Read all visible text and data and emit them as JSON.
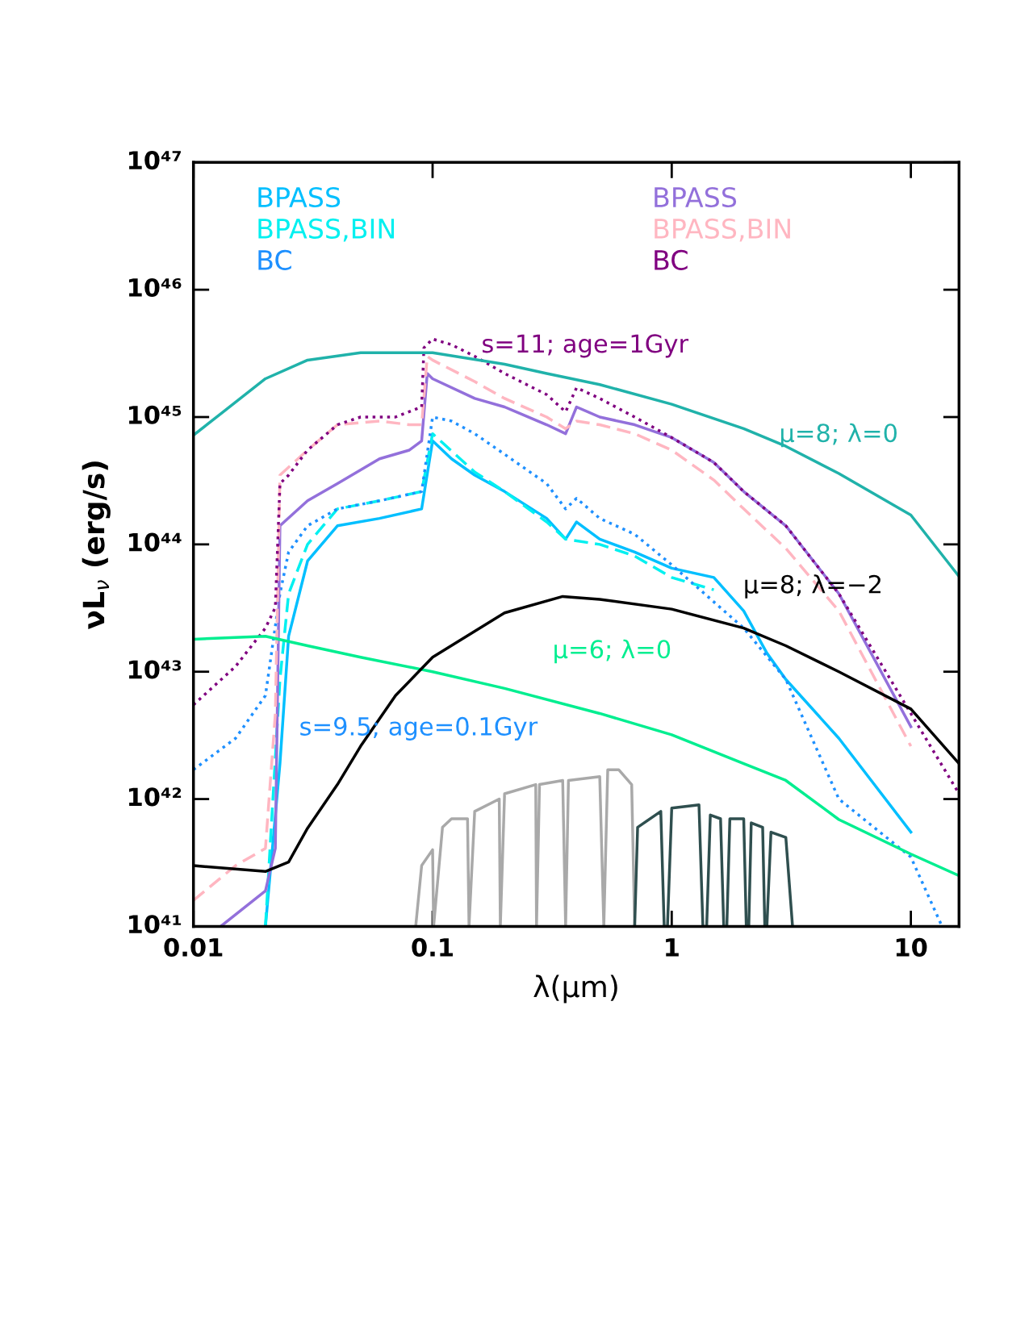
{
  "chart_data": {
    "type": "line",
    "xlabel": "λ(μm)",
    "ylabel": "νL$_{ν}$ (erg/s)",
    "log": "xy",
    "xlim": [
      0.01,
      15.9
    ],
    "ylim": [
      1e+41,
      1e+47
    ],
    "xticks": [
      {
        "value": 0.01,
        "label": "0.01"
      },
      {
        "value": 0.1,
        "label": "0.1"
      },
      {
        "value": 1,
        "label": "1"
      },
      {
        "value": 10,
        "label": "10"
      }
    ],
    "yticks": [
      {
        "value": 1e+41,
        "label": "10⁴¹"
      },
      {
        "value": 1e+42,
        "label": "10⁴²"
      },
      {
        "value": 1e+43,
        "label": "10⁴³"
      },
      {
        "value": 1e+44,
        "label": "10⁴⁴"
      },
      {
        "value": 1e+45,
        "label": "10⁴⁵"
      },
      {
        "value": 1e+46,
        "label": "10⁴⁶"
      },
      {
        "value": 1e+47,
        "label": "10⁴⁷"
      }
    ],
    "grid": false,
    "legend": "top",
    "series": [
      {
        "name": "BPASS",
        "color": "#00bfff",
        "line_style": "solid",
        "x": [
          0.02,
          0.023,
          0.025,
          0.03,
          0.04,
          0.06,
          0.09,
          0.1,
          0.12,
          0.15,
          0.2,
          0.3,
          0.36,
          0.4,
          0.5,
          0.7,
          1,
          1.5,
          2,
          2.5,
          3,
          5,
          10
        ],
        "values": [
          1e+41,
          1.9e+42,
          1.9e+43,
          7.4e+43,
          1.4e+44,
          1.6e+44,
          1.9e+44,
          6.5e+44,
          4.7e+44,
          3.5e+44,
          2.6e+44,
          1.6e+44,
          1.1e+44,
          1.5e+44,
          1.1e+44,
          8.7e+43,
          6.5e+43,
          5.5e+43,
          3e+43,
          1.4e+43,
          8.7e+42,
          3e+42,
          5.5e+41
        ]
      },
      {
        "name": "BPASS,BIN",
        "color": "#00f0f0",
        "line_style": "dashed",
        "x": [
          0.02,
          0.023,
          0.025,
          0.03,
          0.04,
          0.06,
          0.09,
          0.1,
          0.15,
          0.2,
          0.3,
          0.36,
          0.5,
          0.7,
          1,
          1.5
        ],
        "values": [
          1e+41,
          8.7e+42,
          4.1e+43,
          1e+44,
          1.9e+44,
          2.2e+44,
          2.6e+44,
          7.4e+44,
          3.7e+44,
          2.6e+44,
          1.5e+44,
          1.1e+44,
          1e+44,
          8.1e+43,
          5.5e+43,
          4.4e+43
        ]
      },
      {
        "name": "BC",
        "color": "#1e90ff",
        "line_style": "dotted",
        "x": [
          0.01,
          0.015,
          0.02,
          0.023,
          0.025,
          0.03,
          0.04,
          0.06,
          0.09,
          0.1,
          0.12,
          0.15,
          0.2,
          0.3,
          0.36,
          0.4,
          0.5,
          0.7,
          1,
          2,
          3,
          5,
          10,
          13.5
        ],
        "values": [
          1.7e+42,
          3e+42,
          6.5e+42,
          4.1e+43,
          8.7e+43,
          1.4e+44,
          1.9e+44,
          2.2e+44,
          2.6e+44,
          1e+45,
          9.3e+44,
          7.4e+44,
          5.1e+44,
          3e+44,
          1.9e+44,
          2.3e+44,
          1.6e+44,
          1.2e+44,
          6.9e+43,
          2.2e+43,
          8.7e+42,
          1e+42,
          3.5e+41,
          1e+41
        ]
      },
      {
        "name": "BPASS",
        "color": "#9370db",
        "line_style": "solid",
        "x": [
          0.013,
          0.02,
          0.022,
          0.023,
          0.03,
          0.04,
          0.06,
          0.08,
          0.09,
          0.095,
          0.1,
          0.15,
          0.2,
          0.3,
          0.36,
          0.4,
          0.5,
          0.7,
          1,
          1.5,
          2,
          3,
          5,
          10
        ],
        "values": [
          1e+41,
          1.9e+41,
          4.1e+41,
          1.4e+44,
          2.2e+44,
          3e+44,
          4.7e+44,
          5.5e+44,
          6.5e+44,
          2.2e+45,
          2e+45,
          1.4e+45,
          1.2e+45,
          8.7e+44,
          7.4e+44,
          1.2e+45,
          1e+45,
          8.7e+44,
          6.9e+44,
          4.4e+44,
          2.6e+44,
          1.4e+44,
          4.1e+43,
          3.7e+42
        ]
      },
      {
        "name": "BPASS,BIN",
        "color": "#ffb6c1",
        "line_style": "dashed",
        "x": [
          0.01,
          0.015,
          0.02,
          0.022,
          0.023,
          0.03,
          0.04,
          0.06,
          0.08,
          0.09,
          0.095,
          0.1,
          0.15,
          0.2,
          0.3,
          0.36,
          0.4,
          0.5,
          0.7,
          1,
          1.5,
          2,
          3,
          5,
          10
        ],
        "values": [
          1.6e+41,
          3e+41,
          4.1e+41,
          4.7e+42,
          3.5e+44,
          5.5e+44,
          8.7e+44,
          9.3e+44,
          8.7e+44,
          8.7e+44,
          3e+45,
          2.8e+45,
          1.9e+45,
          1.4e+45,
          1e+45,
          8.1e+44,
          9.3e+44,
          8.7e+44,
          7.4e+44,
          5.5e+44,
          3.2e+44,
          1.9e+44,
          9.3e+43,
          3e+43,
          2.6e+42
        ]
      },
      {
        "name": "BC",
        "color": "#800080",
        "line_style": "dotted",
        "x": [
          0.01,
          0.015,
          0.02,
          0.022,
          0.023,
          0.025,
          0.03,
          0.04,
          0.05,
          0.07,
          0.09,
          0.092,
          0.1,
          0.12,
          0.15,
          0.2,
          0.3,
          0.36,
          0.4,
          0.5,
          0.7,
          1,
          1.5,
          2,
          3,
          5,
          10,
          15.9
        ],
        "values": [
          5.5e+42,
          1.1e+43,
          2.2e+43,
          3.2e+43,
          3e+44,
          3.5e+44,
          5.5e+44,
          8.7e+44,
          1e+45,
          1e+45,
          1.2e+45,
          3.5e+45,
          4.1e+45,
          3.7e+45,
          3e+45,
          2.2e+45,
          1.5e+45,
          1.1e+45,
          1.7e+45,
          1.4e+45,
          1e+45,
          6.9e+44,
          4.4e+44,
          2.6e+44,
          1.4e+44,
          4.1e+43,
          4.7e+42,
          1.1e+42
        ]
      },
      {
        "color": "#20b2aa",
        "line_style": "solid",
        "x": [
          0.01,
          0.02,
          0.03,
          0.05,
          0.07,
          0.1,
          0.2,
          0.3,
          0.5,
          1,
          2,
          3,
          5,
          10,
          15.9
        ],
        "values": [
          7.2e+44,
          2e+45,
          2.8e+45,
          3.2e+45,
          3.2e+45,
          3.2e+45,
          2.6e+45,
          2.2e+45,
          1.8e+45,
          1.26e+45,
          8.1e+44,
          5.9e+44,
          3.6e+44,
          1.7e+44,
          5.6e+43
        ]
      },
      {
        "color": "#00ee90",
        "line_style": "solid",
        "x": [
          0.01,
          0.02,
          0.03,
          0.05,
          0.1,
          0.2,
          0.5,
          1,
          2,
          3,
          5,
          10,
          15.9
        ],
        "values": [
          1.8e+43,
          1.9e+43,
          1.6e+43,
          1.3e+43,
          1e+43,
          7.4e+42,
          4.7e+42,
          3.2e+42,
          1.9e+42,
          1.4e+42,
          6.9e+41,
          3.7e+41,
          2.5e+41
        ]
      },
      {
        "color": "#000000",
        "line_style": "solid",
        "x": [
          0.01,
          0.02,
          0.025,
          0.03,
          0.04,
          0.05,
          0.07,
          0.1,
          0.2,
          0.35,
          0.5,
          1,
          2,
          3,
          5,
          10,
          15.9
        ],
        "values": [
          3e+41,
          2.7e+41,
          3.2e+41,
          5.9e+41,
          1.3e+42,
          2.6e+42,
          6.5e+42,
          1.3e+43,
          2.9e+43,
          3.9e+43,
          3.7e+43,
          3.1e+43,
          2.2e+43,
          1.6e+43,
          1e+43,
          5.1e+42,
          1.9e+42
        ]
      },
      {
        "color": "#a9a9a9",
        "line_style": "solid",
        "x": [
          0.085,
          0.09,
          0.1,
          0.101,
          0.11,
          0.12,
          0.14,
          0.142,
          0.15,
          0.19,
          0.192,
          0.2,
          0.27,
          0.272,
          0.28,
          0.35,
          0.36,
          0.37,
          0.5,
          0.52,
          0.54,
          0.6,
          0.68,
          0.7
        ],
        "values": [
          1e+41,
          3e+41,
          4e+41,
          1e+41,
          6e+41,
          7e+41,
          7e+41,
          1e+41,
          8e+41,
          1e+42,
          1e+41,
          1.1e+42,
          1.3e+42,
          1e+41,
          1.3e+42,
          1.4e+42,
          1e+41,
          1.4e+42,
          1.5e+42,
          1e+41,
          1.7e+42,
          1.7e+42,
          1.3e+42,
          1e+41
        ]
      },
      {
        "color": "#2f4f4f",
        "line_style": "solid",
        "x": [
          0.7,
          0.72,
          0.9,
          0.93,
          0.96,
          1.0,
          1.3,
          1.35,
          1.4,
          1.45,
          1.6,
          1.65,
          1.7,
          1.75,
          2.0,
          2.05,
          2.1,
          2.15,
          2.4,
          2.45,
          2.5,
          2.6,
          3.0,
          3.2
        ],
        "values": [
          1e+41,
          6e+41,
          8e+41,
          1e+41,
          1e+41,
          8.5e+41,
          9e+41,
          1e+41,
          1e+41,
          7.5e+41,
          7e+41,
          1e+41,
          1e+41,
          7e+41,
          7e+41,
          1e+41,
          1e+41,
          6.5e+41,
          6e+41,
          1e+41,
          1e+41,
          5.5e+41,
          5e+41,
          1e+41
        ]
      }
    ],
    "annotations": [
      "s=11; age=1Gyr",
      "μ=8; λ=0",
      "μ=8; λ=−2",
      "μ=6; λ=0",
      "s=9.5; age=0.1Gyr"
    ]
  }
}
